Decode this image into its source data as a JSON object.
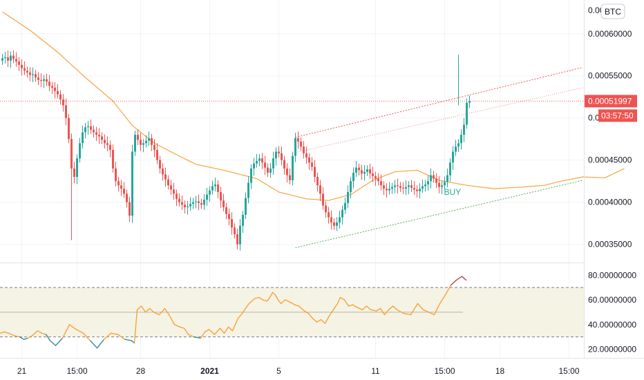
{
  "colors": {
    "up": "#26a69a",
    "down": "#ef5350",
    "ma": "#f7a23c",
    "rsi_line": "#f7a23c",
    "rsi_low": "#3c8a90",
    "rsi_high": "#b2494a",
    "rsi_band": "#f5f3e4",
    "upper_channel": "#ef5350",
    "mid_channel": "#e58a8a",
    "lower_channel": "#4caf50",
    "price_tag": "#ef5350"
  },
  "badge": {
    "currency": "BTC"
  },
  "price_tag": {
    "price": "0.00051997",
    "countdown": "03:57:50"
  },
  "signal": {
    "label": "BUY"
  },
  "chart_data": [
    {
      "type": "candlestick",
      "ylim": [
        0.00033,
        0.00064
      ],
      "y_ticks": [
        "0.00060000",
        "0.00055000",
        "0.00045000",
        "0.00040000",
        "0.00035000"
      ],
      "y_tick_values": [
        0.0006,
        0.00055,
        0.00045,
        0.0004,
        0.00035
      ],
      "partial_top_tick": "0.00",
      "partial_mid_tick": "0.0",
      "current_price": 0.00051997,
      "x_ticks": [
        "21",
        "15:00",
        "28",
        "2021",
        "5",
        "11",
        "15:00",
        "18",
        "15:00"
      ],
      "x_tick_index": [
        7,
        27,
        50,
        75,
        100,
        135,
        160,
        180,
        205
      ],
      "bar_count": 170,
      "candles_close": [
        0.000571,
        0.000572,
        0.000568,
        0.000574,
        0.00057,
        0.000567,
        0.000563,
        0.000559,
        0.000556,
        0.000554,
        0.000551,
        0.000552,
        0.000548,
        0.000545,
        0.000544,
        0.000546,
        0.000543,
        0.000538,
        0.000536,
        0.000532,
        0.000528,
        0.000522,
        0.000515,
        0.0005,
        0.000475,
        0.00044,
        0.00043,
        0.000452,
        0.00047,
        0.000483,
        0.000489,
        0.00049,
        0.000486,
        0.000483,
        0.00048,
        0.000478,
        0.000474,
        0.00047,
        0.000468,
        0.000462,
        0.00044,
        0.000425,
        0.00042,
        0.000416,
        0.00041,
        0.0004,
        0.000384,
        0.00046,
        0.00048,
        0.000474,
        0.000468,
        0.00047,
        0.000473,
        0.000476,
        0.000468,
        0.000462,
        0.00045,
        0.00044,
        0.000433,
        0.000427,
        0.00042,
        0.000415,
        0.00041,
        0.000404,
        0.0004,
        0.000397,
        0.000394,
        0.000395,
        0.000398,
        0.0004,
        0.000401,
        0.000399,
        0.000397,
        0.000403,
        0.000409,
        0.000414,
        0.000419,
        0.000421,
        0.000412,
        0.000402,
        0.000394,
        0.000386,
        0.00038,
        0.00037,
        0.000362,
        0.00035,
        0.000372,
        0.000385,
        0.000405,
        0.000423,
        0.00044,
        0.000446,
        0.000449,
        0.000452,
        0.000447,
        0.000441,
        0.000435,
        0.00044,
        0.000452,
        0.00046,
        0.000458,
        0.00045,
        0.00044,
        0.000432,
        0.000426,
        0.000455,
        0.000476,
        0.000472,
        0.000466,
        0.000458,
        0.000453,
        0.000447,
        0.000442,
        0.00043,
        0.00042,
        0.00041,
        0.000396,
        0.000388,
        0.000382,
        0.000376,
        0.000372,
        0.000376,
        0.000382,
        0.000391,
        0.000399,
        0.000412,
        0.000425,
        0.000435,
        0.000441,
        0.000438,
        0.000434,
        0.000436,
        0.000439,
        0.000434,
        0.000431,
        0.000428,
        0.000425,
        0.00042,
        0.000416,
        0.000414,
        0.000416,
        0.000418,
        0.00042,
        0.000419,
        0.000417,
        0.000416,
        0.000418,
        0.00042,
        0.000417,
        0.000415,
        0.000413,
        0.000416,
        0.000419,
        0.000421,
        0.000425,
        0.000432,
        0.000428,
        0.000423,
        0.000418,
        0.00042,
        0.000424,
        0.000432,
        0.000447,
        0.00046,
        0.000466,
        0.00047,
        0.00048,
        0.000492,
        0.000518,
        0.00052
      ],
      "moving_average": [
        [
          0,
          0.000626
        ],
        [
          10,
          0.000604
        ],
        [
          20,
          0.000578
        ],
        [
          30,
          0.000548
        ],
        [
          40,
          0.00052
        ],
        [
          47,
          0.000491
        ],
        [
          55,
          0.00047
        ],
        [
          62,
          0.000458
        ],
        [
          70,
          0.000445
        ],
        [
          80,
          0.000438
        ],
        [
          92,
          0.000428
        ],
        [
          100,
          0.000412
        ],
        [
          110,
          0.000404
        ],
        [
          118,
          0.000402
        ],
        [
          126,
          0.000409
        ],
        [
          134,
          0.000426
        ],
        [
          142,
          0.000436
        ],
        [
          150,
          0.000438
        ],
        [
          158,
          0.000426
        ],
        [
          168,
          0.00042
        ],
        [
          178,
          0.000416
        ],
        [
          188,
          0.000418
        ],
        [
          196,
          0.00042
        ],
        [
          202,
          0.000425
        ],
        [
          210,
          0.00043
        ],
        [
          218,
          0.000429
        ],
        [
          225,
          0.00044
        ]
      ],
      "channel_upper": [
        [
          106,
          0.000477
        ],
        [
          210,
          0.00056
        ]
      ],
      "channel_mid": [
        [
          106,
          0.000459
        ],
        [
          210,
          0.000536
        ]
      ],
      "channel_lower": [
        [
          106,
          0.000346
        ],
        [
          210,
          0.000426
        ]
      ]
    },
    {
      "type": "line",
      "name": "RSI",
      "ylim": [
        13,
        88
      ],
      "y_ticks": [
        "80.00000000",
        "60.00000000",
        "40.00000000",
        "20.00000000"
      ],
      "y_tick_values": [
        80,
        60,
        40,
        20
      ],
      "band": [
        30,
        70
      ],
      "midline": 50,
      "values": [
        [
          0,
          33
        ],
        [
          3,
          34
        ],
        [
          6,
          33
        ],
        [
          10,
          31
        ],
        [
          14,
          30
        ],
        [
          17,
          28
        ],
        [
          20,
          29
        ],
        [
          23,
          31
        ],
        [
          27,
          35
        ],
        [
          30,
          33
        ],
        [
          33,
          32
        ],
        [
          36,
          27
        ],
        [
          40,
          23
        ],
        [
          45,
          29
        ],
        [
          50,
          40
        ],
        [
          55,
          36
        ],
        [
          60,
          33
        ],
        [
          65,
          27
        ],
        [
          70,
          21
        ],
        [
          75,
          28
        ],
        [
          80,
          33
        ],
        [
          85,
          32
        ],
        [
          90,
          28
        ],
        [
          95,
          27
        ],
        [
          97,
          25
        ],
        [
          99,
          52
        ],
        [
          102,
          55
        ],
        [
          105,
          50
        ],
        [
          108,
          53
        ],
        [
          111,
          50
        ],
        [
          115,
          48
        ],
        [
          119,
          53
        ],
        [
          122,
          48
        ],
        [
          126,
          40
        ],
        [
          130,
          38
        ],
        [
          133,
          37
        ],
        [
          136,
          32
        ],
        [
          140,
          30
        ],
        [
          145,
          29
        ],
        [
          148,
          34
        ],
        [
          151,
          36
        ],
        [
          155,
          32
        ],
        [
          159,
          37
        ],
        [
          162,
          33
        ],
        [
          165,
          38
        ],
        [
          168,
          35
        ],
        [
          172,
          45
        ],
        [
          175,
          49
        ],
        [
          178,
          54
        ],
        [
          180,
          57
        ],
        [
          184,
          61
        ],
        [
          187,
          62
        ],
        [
          190,
          60
        ],
        [
          193,
          59
        ],
        [
          195,
          62
        ],
        [
          197,
          66
        ],
        [
          199,
          64
        ],
        [
          201,
          60
        ],
        [
          203,
          57
        ],
        [
          206,
          60
        ],
        [
          210,
          58
        ],
        [
          213,
          56
        ],
        [
          216,
          55
        ],
        [
          220,
          51
        ],
        [
          223,
          49
        ],
        [
          226,
          45
        ],
        [
          229,
          42
        ],
        [
          232,
          44
        ],
        [
          235,
          41
        ],
        [
          238,
          47
        ],
        [
          241,
          52
        ],
        [
          244,
          57
        ],
        [
          246,
          62
        ],
        [
          249,
          60
        ],
        [
          252,
          55
        ],
        [
          255,
          56
        ],
        [
          258,
          54
        ],
        [
          262,
          52
        ],
        [
          265,
          55
        ],
        [
          268,
          52
        ],
        [
          272,
          51
        ],
        [
          275,
          53
        ],
        [
          278,
          48
        ],
        [
          281,
          52
        ],
        [
          284,
          55
        ],
        [
          287,
          52
        ],
        [
          292,
          49
        ],
        [
          297,
          48
        ],
        [
          302,
          57
        ],
        [
          306,
          52
        ],
        [
          310,
          50
        ],
        [
          314,
          48
        ],
        [
          318,
          57
        ],
        [
          322,
          64
        ],
        [
          326,
          72
        ],
        [
          330,
          76
        ],
        [
          334,
          79
        ],
        [
          337,
          76
        ]
      ]
    }
  ]
}
